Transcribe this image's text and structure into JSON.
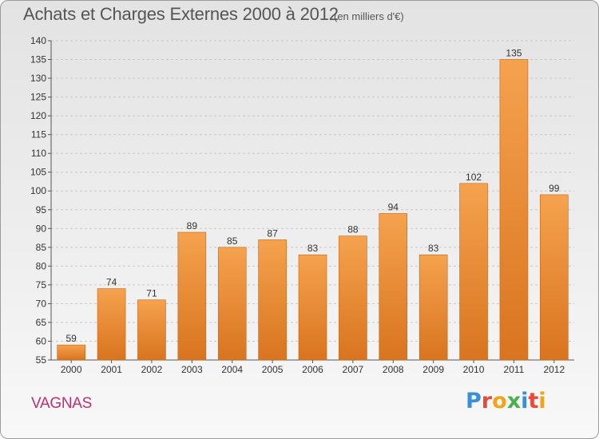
{
  "header": {
    "title": "Achats et Charges Externes 2000 à 2012",
    "subtitle": "(en milliers d'€)"
  },
  "footer": {
    "commune": "VAGNAS",
    "logo_letters": [
      "P",
      "r",
      "o",
      "x",
      "i",
      "t",
      "i"
    ],
    "logo_colors": [
      "#3a8fd6",
      "#e84a3a",
      "#f2a21b",
      "#4caf50",
      "#3a8fd6",
      "#e84a3a",
      "#f2a21b"
    ]
  },
  "chart_data": {
    "type": "bar",
    "title": "Achats et Charges Externes 2000 à 2012",
    "subtitle": "(en milliers d'€)",
    "categories": [
      "2000",
      "2001",
      "2002",
      "2003",
      "2004",
      "2005",
      "2006",
      "2007",
      "2008",
      "2009",
      "2010",
      "2011",
      "2012"
    ],
    "values": [
      59,
      74,
      71,
      89,
      85,
      87,
      83,
      88,
      94,
      83,
      102,
      135,
      99
    ],
    "xlabel": "",
    "ylabel": "",
    "ylim": [
      55,
      140
    ],
    "yticks": [
      55,
      60,
      65,
      70,
      75,
      80,
      85,
      90,
      95,
      100,
      105,
      110,
      115,
      120,
      125,
      130,
      135,
      140
    ],
    "grid": "y-dashed",
    "bar_color_top": "#f5a24e",
    "bar_color_bottom": "#d9741f"
  }
}
